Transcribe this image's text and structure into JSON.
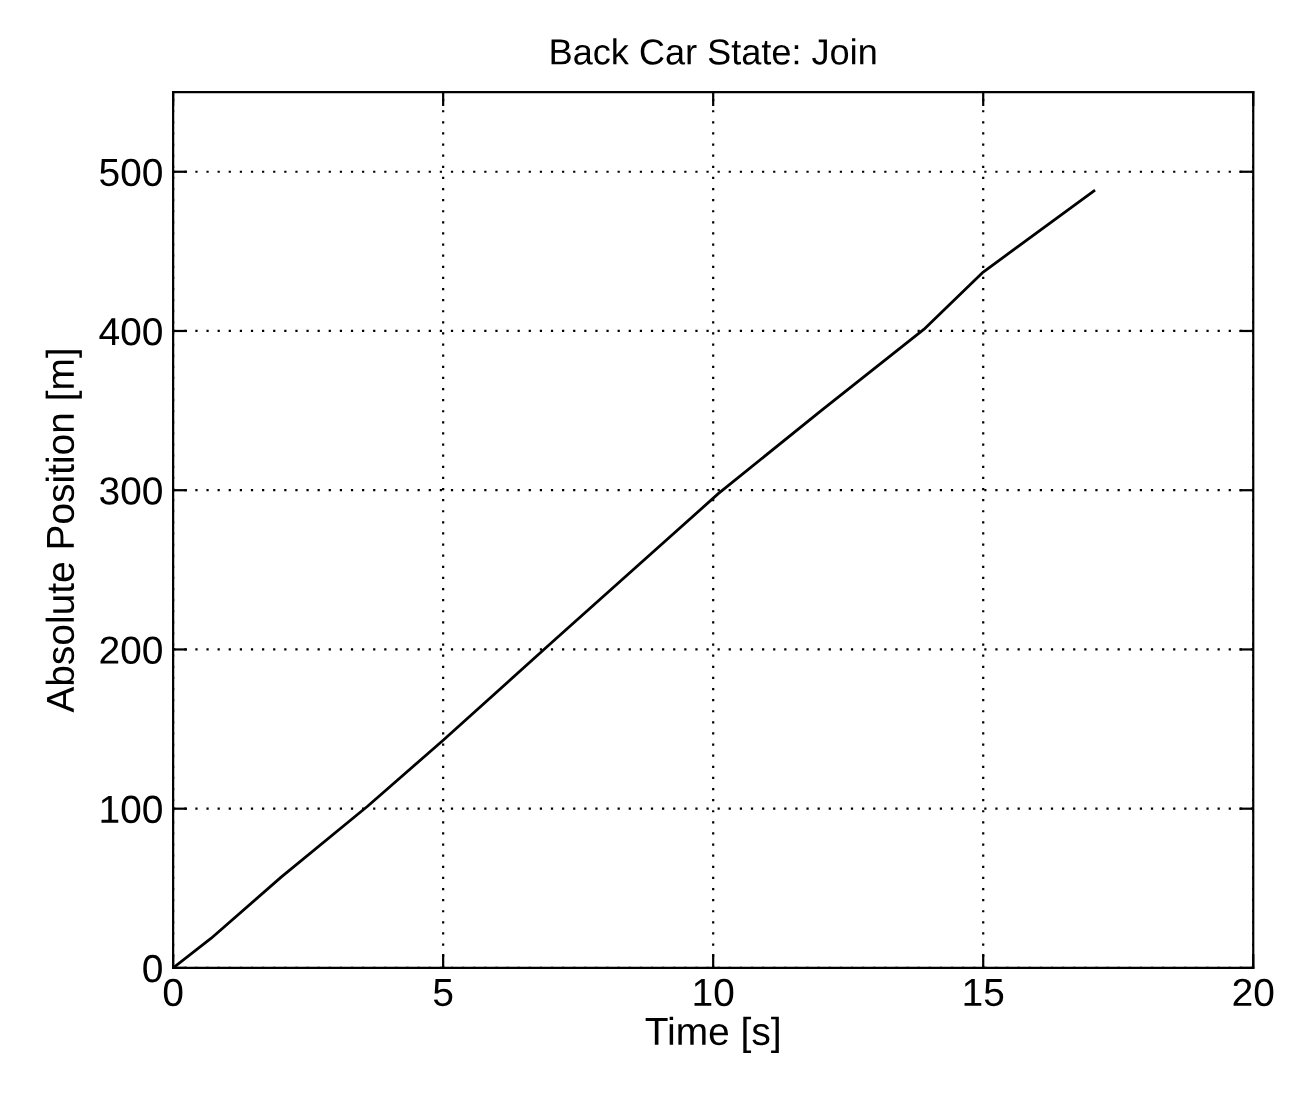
{
  "chart_data": {
    "type": "line",
    "title": "Back Car State: Join",
    "xlabel": "Time [s]",
    "ylabel": "Absolute Position [m]",
    "series": [
      {
        "color": "#000000",
        "x": [
          0,
          0.7,
          2,
          3.6,
          5,
          7,
          10.1,
          12,
          13.9,
          15,
          17.05
        ],
        "values": [
          0,
          18.5,
          57,
          101.5,
          143,
          204,
          298,
          350,
          401,
          437,
          488
        ]
      }
    ],
    "xlim": [
      0,
      20
    ],
    "xticks": [
      0,
      5,
      10,
      15,
      20
    ],
    "ylim": [
      0,
      550
    ],
    "yticks": [
      0,
      100,
      200,
      300,
      400,
      500
    ],
    "grid": true,
    "line_style": "solid",
    "marker": "none"
  }
}
